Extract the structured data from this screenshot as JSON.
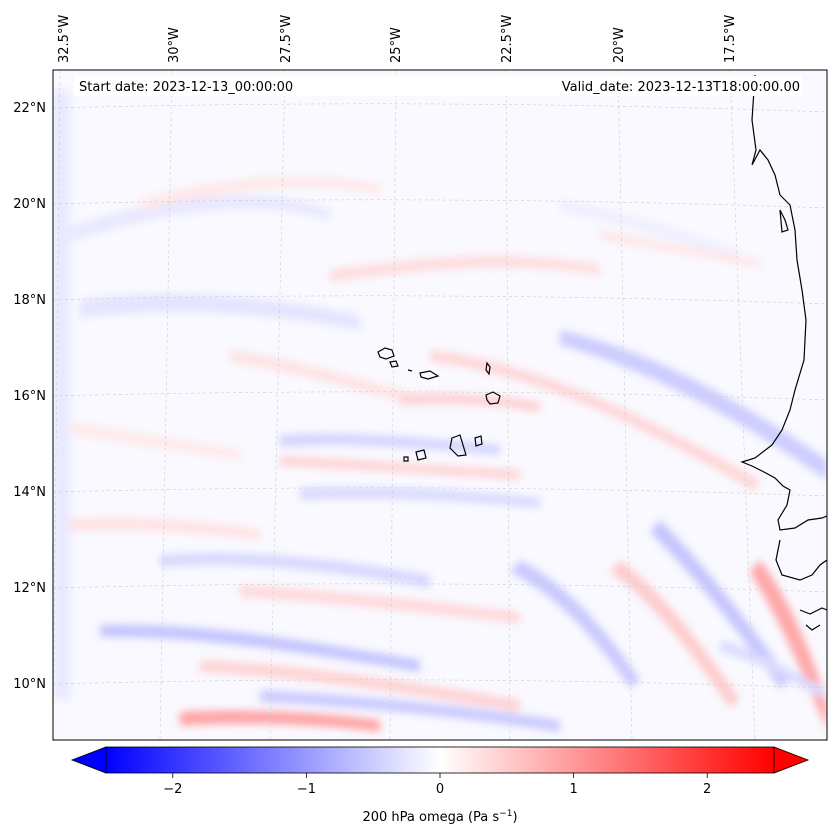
{
  "map": {
    "header": {
      "start_label": "Start date: 2023-12-13_00:00:00",
      "valid_label": "Valid_date: 2023-12-13T18:00:00.00"
    },
    "longitude_labels": [
      "32.5°W",
      "30°W",
      "27.5°W",
      "25°W",
      "22.5°W",
      "20°W",
      "17.5°W"
    ],
    "latitude_labels": [
      "22°N",
      "20°N",
      "18°N",
      "16°N",
      "14°N",
      "12°N",
      "10°N"
    ],
    "field": "200 hPa omega",
    "colors": {
      "negative": "#0000ff",
      "neutral": "#ffffff",
      "positive": "#ff0000",
      "coast": "#000000",
      "grid": "#c8c8c8"
    }
  },
  "colorbar": {
    "min": -2.5,
    "max": 2.5,
    "tick_values": [
      -2,
      -1,
      0,
      1,
      2
    ],
    "tick_labels": [
      "−2",
      "−1",
      "0",
      "1",
      "2"
    ],
    "label_text": "200 hPa omega (Pa s",
    "label_exp": "−1",
    "label_close": ")"
  }
}
